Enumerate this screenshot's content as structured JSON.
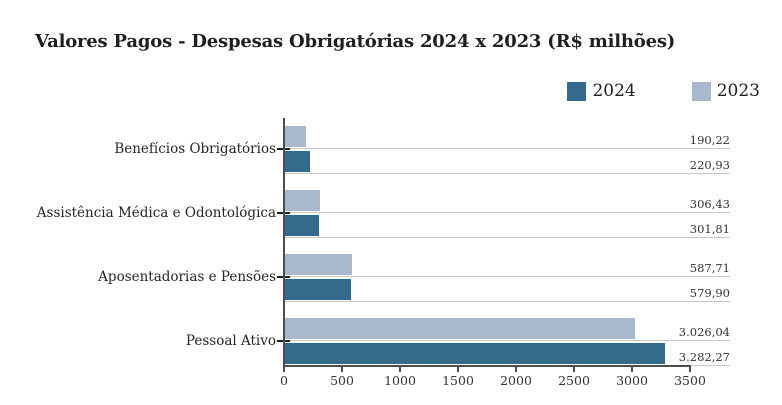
{
  "title": "Valores Pagos - Despesas Obrigatórias 2024 x 2023 (R$ milhões)",
  "legend": {
    "items": [
      {
        "label": "2024",
        "color": "#336b8d"
      },
      {
        "label": "2023",
        "color": "#a9b8cd"
      }
    ]
  },
  "chart_data": {
    "type": "bar",
    "orientation": "horizontal",
    "title": "Valores Pagos - Despesas Obrigatórias 2024 x 2023 (R$ milhões)",
    "categories": [
      "Benefícios Obrigatórios",
      "Assistência Médica e Odontológica",
      "Aposentadorias e Pensões",
      "Pessoal Ativo"
    ],
    "series": [
      {
        "name": "2024",
        "color": "#336b8d",
        "values": [
          220.93,
          301.81,
          579.9,
          3282.27
        ],
        "value_labels": [
          "220,93",
          "301,81",
          "579,90",
          "3.282,27"
        ]
      },
      {
        "name": "2023",
        "color": "#a9b8cd",
        "values": [
          190.22,
          306.43,
          587.71,
          3026.04
        ],
        "value_labels": [
          "190,22",
          "306,43",
          "587,71",
          "3.026,04"
        ]
      }
    ],
    "xlabel": "",
    "ylabel": "",
    "xlim": [
      0,
      3500
    ],
    "x_tick_values": [
      0,
      500,
      1000,
      1500,
      2000,
      2500,
      3000,
      3500
    ],
    "x_tick_labels": [
      "0",
      "500",
      "1000",
      "1500",
      "2000",
      "2500",
      "3000",
      "3500"
    ],
    "grid": false,
    "bar_underlines": true,
    "legend_position": "top-right",
    "value_label_position": "right-aligned-on-underline",
    "number_format": "pt-BR"
  },
  "colors": {
    "series_2024": "#336b8d",
    "series_2023": "#a9b8cd",
    "underline": "#c8c8c8",
    "axis": "#4d4d4d",
    "category_tick": "#1f1f1f",
    "title_text": "#1f1f1f",
    "label_text": "#262626",
    "value_text": "#333333",
    "background": "#ffffff"
  }
}
